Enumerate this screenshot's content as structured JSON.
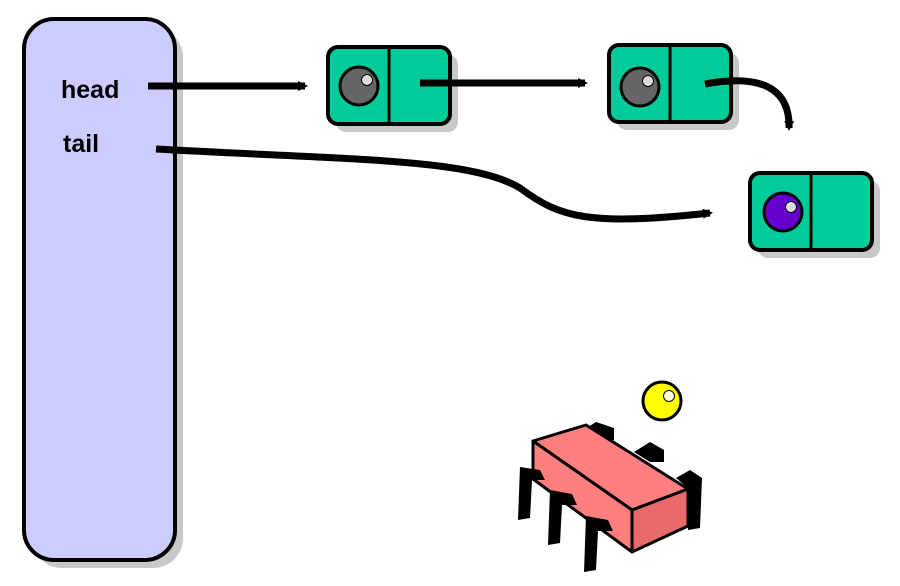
{
  "queue": {
    "fields": [
      {
        "label": "head"
      },
      {
        "label": "tail"
      }
    ]
  },
  "nodes": [
    {
      "value_color": "grey"
    },
    {
      "value_color": "grey"
    },
    {
      "value_color": "purple"
    }
  ],
  "incoming_item": {
    "color": "yellow",
    "carrier": "red-chip-icon"
  },
  "colors": {
    "queue_fill": "#ccccff",
    "node_fill": "#00cc99",
    "shadow": "#c8c8c8",
    "grey_value": "#666666",
    "purple_value": "#6600cc",
    "yellow_value": "#ffff00",
    "chip_top": "#ff7f7f",
    "chip_side": "#e86a6a",
    "outline": "#000000"
  }
}
